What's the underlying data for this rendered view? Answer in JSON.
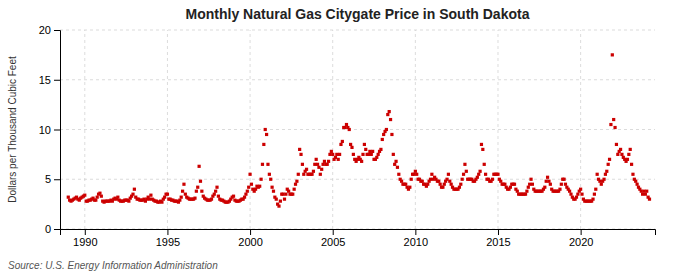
{
  "chart_data": {
    "type": "scatter",
    "title": "Monthly Natural Gas Citygate Price in South Dakota",
    "ylabel": "Dollars per Thousand Cubic Feet",
    "annotations": [
      "Source: U.S. Energy Information Administration"
    ],
    "color": "#cc0000",
    "marker": "square",
    "grid": true,
    "xlim": [
      1988.5,
      2024.5
    ],
    "xticks": [
      1990,
      1995,
      2000,
      2005,
      2010,
      2015,
      2020
    ],
    "ylim": [
      0,
      20
    ],
    "yticks": [
      0,
      5,
      10,
      15,
      20
    ],
    "x": [
      1989.0,
      1989.083,
      1989.167,
      1989.25,
      1989.333,
      1989.417,
      1989.5,
      1989.583,
      1989.667,
      1989.75,
      1989.833,
      1989.917,
      1990.0,
      1990.083,
      1990.167,
      1990.25,
      1990.333,
      1990.417,
      1990.5,
      1990.583,
      1990.667,
      1990.75,
      1990.833,
      1990.917,
      1991.0,
      1991.083,
      1991.167,
      1991.25,
      1991.333,
      1991.417,
      1991.5,
      1991.583,
      1991.667,
      1991.75,
      1991.833,
      1991.917,
      1992.0,
      1992.083,
      1992.167,
      1992.25,
      1992.333,
      1992.417,
      1992.5,
      1992.583,
      1992.667,
      1992.75,
      1992.833,
      1992.917,
      1993.0,
      1993.083,
      1993.167,
      1993.25,
      1993.333,
      1993.417,
      1993.5,
      1993.583,
      1993.667,
      1993.75,
      1993.833,
      1993.917,
      1994.0,
      1994.083,
      1994.167,
      1994.25,
      1994.333,
      1994.417,
      1994.5,
      1994.583,
      1994.667,
      1994.75,
      1994.833,
      1994.917,
      1995.0,
      1995.083,
      1995.167,
      1995.25,
      1995.333,
      1995.417,
      1995.5,
      1995.583,
      1995.667,
      1995.75,
      1995.833,
      1995.917,
      1996.0,
      1996.083,
      1996.167,
      1996.25,
      1996.333,
      1996.417,
      1996.5,
      1996.583,
      1996.667,
      1996.75,
      1996.833,
      1996.917,
      1997.0,
      1997.083,
      1997.167,
      1997.25,
      1997.333,
      1997.417,
      1997.5,
      1997.583,
      1997.667,
      1997.75,
      1997.833,
      1997.917,
      1998.0,
      1998.083,
      1998.167,
      1998.25,
      1998.333,
      1998.417,
      1998.5,
      1998.583,
      1998.667,
      1998.75,
      1998.833,
      1998.917,
      1999.0,
      1999.083,
      1999.167,
      1999.25,
      1999.333,
      1999.417,
      1999.5,
      1999.583,
      1999.667,
      1999.75,
      1999.833,
      1999.917,
      2000.0,
      2000.083,
      2000.167,
      2000.25,
      2000.333,
      2000.417,
      2000.5,
      2000.583,
      2000.667,
      2000.75,
      2000.833,
      2000.917,
      2001.0,
      2001.083,
      2001.167,
      2001.25,
      2001.333,
      2001.417,
      2001.5,
      2001.583,
      2001.667,
      2001.75,
      2001.833,
      2001.917,
      2002.0,
      2002.083,
      2002.167,
      2002.25,
      2002.333,
      2002.417,
      2002.5,
      2002.583,
      2002.667,
      2002.75,
      2002.833,
      2002.917,
      2003.0,
      2003.083,
      2003.167,
      2003.25,
      2003.333,
      2003.417,
      2003.5,
      2003.583,
      2003.667,
      2003.75,
      2003.833,
      2003.917,
      2004.0,
      2004.083,
      2004.167,
      2004.25,
      2004.333,
      2004.417,
      2004.5,
      2004.583,
      2004.667,
      2004.75,
      2004.833,
      2004.917,
      2005.0,
      2005.083,
      2005.167,
      2005.25,
      2005.333,
      2005.417,
      2005.5,
      2005.583,
      2005.667,
      2005.75,
      2005.833,
      2005.917,
      2006.0,
      2006.083,
      2006.167,
      2006.25,
      2006.333,
      2006.417,
      2006.5,
      2006.583,
      2006.667,
      2006.75,
      2006.833,
      2006.917,
      2007.0,
      2007.083,
      2007.167,
      2007.25,
      2007.333,
      2007.417,
      2007.5,
      2007.583,
      2007.667,
      2007.75,
      2007.833,
      2007.917,
      2008.0,
      2008.083,
      2008.167,
      2008.25,
      2008.333,
      2008.417,
      2008.5,
      2008.583,
      2008.667,
      2008.75,
      2008.833,
      2008.917,
      2009.0,
      2009.083,
      2009.167,
      2009.25,
      2009.333,
      2009.417,
      2009.5,
      2009.583,
      2009.667,
      2009.75,
      2009.833,
      2009.917,
      2010.0,
      2010.083,
      2010.167,
      2010.25,
      2010.333,
      2010.417,
      2010.5,
      2010.583,
      2010.667,
      2010.75,
      2010.833,
      2010.917,
      2011.0,
      2011.083,
      2011.167,
      2011.25,
      2011.333,
      2011.417,
      2011.5,
      2011.583,
      2011.667,
      2011.75,
      2011.833,
      2011.917,
      2012.0,
      2012.083,
      2012.167,
      2012.25,
      2012.333,
      2012.417,
      2012.5,
      2012.583,
      2012.667,
      2012.75,
      2012.833,
      2012.917,
      2013.0,
      2013.083,
      2013.167,
      2013.25,
      2013.333,
      2013.417,
      2013.5,
      2013.583,
      2013.667,
      2013.75,
      2013.833,
      2013.917,
      2014.0,
      2014.083,
      2014.167,
      2014.25,
      2014.333,
      2014.417,
      2014.5,
      2014.583,
      2014.667,
      2014.75,
      2014.833,
      2014.917,
      2015.0,
      2015.083,
      2015.167,
      2015.25,
      2015.333,
      2015.417,
      2015.5,
      2015.583,
      2015.667,
      2015.75,
      2015.833,
      2015.917,
      2016.0,
      2016.083,
      2016.167,
      2016.25,
      2016.333,
      2016.417,
      2016.5,
      2016.583,
      2016.667,
      2016.75,
      2016.833,
      2016.917,
      2017.0,
      2017.083,
      2017.167,
      2017.25,
      2017.333,
      2017.417,
      2017.5,
      2017.583,
      2017.667,
      2017.75,
      2017.833,
      2017.917,
      2018.0,
      2018.083,
      2018.167,
      2018.25,
      2018.333,
      2018.417,
      2018.5,
      2018.583,
      2018.667,
      2018.75,
      2018.833,
      2018.917,
      2019.0,
      2019.083,
      2019.167,
      2019.25,
      2019.333,
      2019.417,
      2019.5,
      2019.583,
      2019.667,
      2019.75,
      2019.833,
      2019.917,
      2020.0,
      2020.083,
      2020.167,
      2020.25,
      2020.333,
      2020.417,
      2020.5,
      2020.583,
      2020.667,
      2020.75,
      2020.833,
      2020.917,
      2021.0,
      2021.083,
      2021.167,
      2021.25,
      2021.333,
      2021.417,
      2021.5,
      2021.583,
      2021.667,
      2021.75,
      2021.833,
      2021.917,
      2022.0,
      2022.083,
      2022.167,
      2022.25,
      2022.333,
      2022.417,
      2022.5,
      2022.583,
      2022.667,
      2022.75,
      2022.833,
      2022.917,
      2023.0,
      2023.083,
      2023.167,
      2023.25,
      2023.333,
      2023.417,
      2023.5,
      2023.583,
      2023.667,
      2023.75,
      2023.833,
      2023.917,
      2024.0,
      2024.083,
      2024.167
    ],
    "values": [
      3.2,
      2.9,
      2.8,
      2.9,
      3.0,
      3.1,
      3.2,
      3.0,
      2.9,
      3.1,
      3.2,
      3.3,
      3.4,
      2.8,
      2.8,
      2.9,
      2.9,
      3.0,
      3.1,
      2.9,
      2.9,
      3.2,
      3.5,
      3.6,
      3.3,
      2.8,
      2.7,
      2.8,
      2.8,
      2.8,
      2.8,
      2.9,
      2.8,
      3.0,
      3.1,
      3.0,
      3.2,
      2.9,
      2.8,
      2.8,
      2.8,
      2.9,
      2.9,
      2.9,
      2.8,
      3.1,
      3.3,
      3.5,
      4.0,
      3.2,
      3.0,
      3.0,
      2.9,
      2.9,
      2.9,
      3.0,
      2.8,
      3.0,
      3.2,
      3.0,
      3.4,
      3.0,
      2.9,
      2.8,
      2.8,
      2.7,
      2.7,
      2.8,
      2.7,
      3.0,
      3.2,
      3.5,
      3.5,
      3.0,
      3.0,
      2.9,
      2.9,
      2.8,
      2.8,
      2.8,
      2.7,
      2.9,
      3.2,
      3.8,
      4.5,
      3.5,
      3.2,
      3.1,
      3.0,
      3.0,
      3.0,
      3.0,
      3.1,
      3.8,
      4.2,
      6.3,
      4.8,
      3.8,
      3.3,
      3.1,
      3.0,
      2.9,
      2.9,
      2.9,
      3.0,
      3.3,
      3.5,
      3.8,
      4.2,
      3.3,
      3.0,
      2.9,
      2.9,
      2.8,
      2.7,
      2.7,
      2.7,
      2.8,
      3.0,
      3.2,
      3.3,
      2.9,
      2.8,
      2.8,
      2.8,
      2.9,
      3.0,
      3.0,
      3.2,
      3.5,
      3.8,
      4.2,
      5.5,
      4.5,
      4.0,
      3.8,
      4.0,
      4.3,
      4.2,
      4.3,
      5.0,
      6.5,
      8.5,
      10.0,
      9.5,
      6.5,
      5.5,
      5.0,
      4.2,
      3.8,
      3.2,
      3.0,
      2.5,
      2.3,
      2.8,
      3.5,
      3.5,
      3.0,
      3.5,
      4.0,
      3.8,
      3.5,
      3.5,
      3.5,
      4.0,
      4.5,
      4.8,
      5.5,
      8.0,
      7.5,
      6.5,
      5.5,
      5.8,
      6.0,
      5.5,
      5.5,
      5.5,
      5.5,
      5.8,
      6.5,
      7.0,
      6.5,
      6.2,
      5.5,
      6.0,
      6.5,
      6.8,
      6.5,
      6.5,
      6.8,
      7.5,
      7.8,
      7.5,
      7.0,
      7.2,
      7.5,
      7.0,
      7.5,
      8.5,
      8.8,
      10.2,
      10.2,
      10.5,
      10.2,
      10.0,
      8.5,
      8.2,
      7.5,
      7.0,
      6.8,
      7.0,
      7.2,
      7.0,
      6.8,
      7.5,
      8.5,
      8.0,
      7.5,
      7.5,
      7.8,
      7.5,
      7.8,
      7.0,
      7.0,
      7.2,
      7.5,
      7.8,
      8.0,
      9.0,
      9.5,
      9.8,
      10.0,
      11.5,
      11.8,
      11.0,
      9.5,
      7.5,
      6.5,
      6.8,
      6.2,
      5.5,
      5.0,
      4.8,
      4.5,
      4.5,
      4.5,
      4.2,
      4.0,
      4.2,
      5.0,
      5.5,
      5.5,
      5.8,
      5.5,
      5.0,
      5.0,
      4.8,
      4.8,
      4.5,
      4.5,
      4.3,
      4.5,
      4.8,
      5.0,
      5.5,
      5.0,
      5.2,
      5.0,
      4.8,
      4.8,
      4.5,
      4.2,
      4.2,
      4.5,
      4.8,
      5.0,
      5.5,
      4.8,
      4.5,
      4.2,
      4.0,
      4.0,
      4.0,
      4.0,
      4.2,
      4.5,
      5.0,
      5.5,
      6.5,
      5.8,
      5.0,
      5.0,
      5.0,
      5.0,
      4.8,
      4.8,
      5.0,
      5.2,
      5.5,
      5.8,
      8.5,
      8.0,
      6.5,
      5.5,
      5.0,
      5.0,
      4.8,
      4.8,
      5.0,
      5.5,
      5.5,
      5.5,
      5.5,
      5.0,
      4.8,
      4.5,
      4.5,
      4.5,
      4.2,
      4.0,
      4.0,
      4.2,
      4.5,
      4.5,
      4.5,
      4.0,
      3.8,
      3.5,
      3.5,
      3.5,
      3.5,
      3.5,
      3.5,
      3.8,
      4.2,
      4.5,
      5.0,
      4.5,
      4.0,
      3.8,
      3.8,
      3.8,
      3.8,
      3.8,
      3.8,
      4.0,
      4.2,
      4.8,
      5.2,
      4.8,
      4.5,
      4.0,
      3.8,
      3.8,
      3.8,
      3.8,
      3.8,
      4.0,
      4.5,
      5.0,
      5.0,
      4.5,
      4.2,
      4.0,
      3.8,
      3.5,
      3.2,
      3.0,
      3.0,
      3.2,
      3.5,
      3.8,
      4.0,
      3.5,
      3.0,
      2.8,
      2.8,
      2.8,
      2.8,
      2.8,
      2.8,
      3.0,
      3.5,
      4.0,
      5.5,
      5.0,
      4.8,
      4.5,
      4.8,
      5.0,
      5.5,
      5.8,
      6.5,
      7.0,
      10.5,
      17.5,
      11.0,
      10.2,
      8.5,
      7.5,
      7.8,
      8.0,
      7.5,
      7.2,
      7.0,
      6.8,
      7.0,
      7.5,
      8.0,
      6.5,
      5.5,
      5.0,
      4.8,
      4.5,
      4.2,
      4.0,
      3.8,
      3.5,
      3.8,
      3.5,
      3.8,
      3.2,
      3.0
    ]
  }
}
